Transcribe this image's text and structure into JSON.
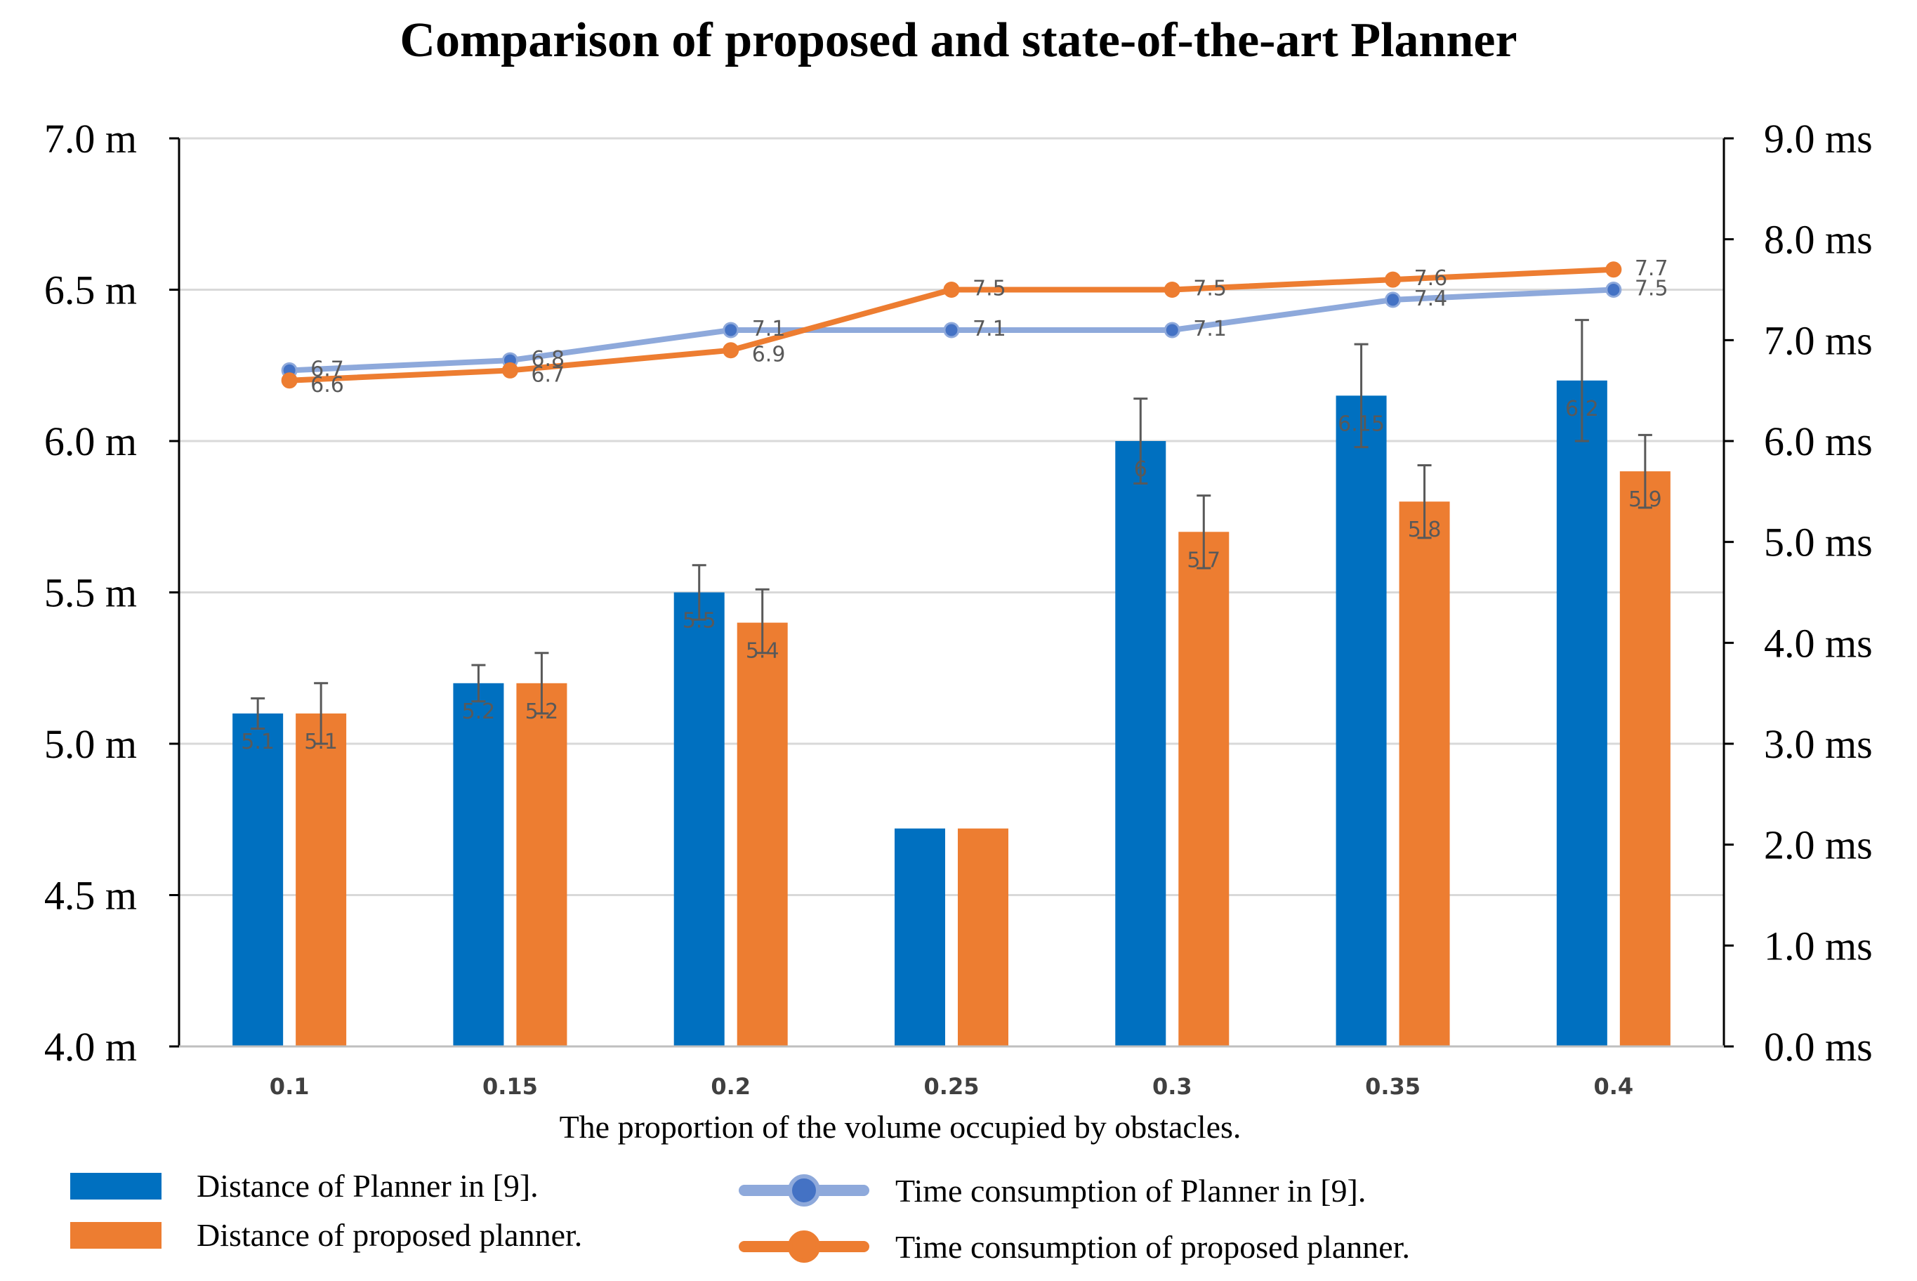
{
  "chart_data": {
    "type": "bar",
    "title": "Comparison of proposed and state-of-the-art Planner",
    "xlabel": "The proportion of the volume occupied by obstacles.",
    "categories": [
      "0.1",
      "0.15",
      "0.2",
      "0.25",
      "0.3",
      "0.35",
      "0.4"
    ],
    "left_axis": {
      "ylim": [
        4.0,
        7.0
      ],
      "ticks": [
        "4.0 m",
        "4.5 m",
        "5.0 m",
        "5.5 m",
        "6.0 m",
        "6.5 m",
        "7.0 m"
      ],
      "tick_values": [
        4.0,
        4.5,
        5.0,
        5.5,
        6.0,
        6.5,
        7.0
      ]
    },
    "right_axis": {
      "ylim": [
        0.0,
        9.0
      ],
      "ticks": [
        "0.0 ms",
        "1.0 ms",
        "2.0 ms",
        "3.0 ms",
        "4.0 ms",
        "5.0 ms",
        "6.0 ms",
        "7.0 ms",
        "8.0 ms",
        "9.0 ms"
      ],
      "tick_values": [
        0,
        1,
        2,
        3,
        4,
        5,
        6,
        7,
        8,
        9
      ]
    },
    "bar_series": [
      {
        "name": "Distance of Planner in [9].",
        "color": "#0070C0",
        "values": [
          5.1,
          5.2,
          5.5,
          4.72,
          6.0,
          6.15,
          6.2
        ],
        "error_low": [
          5.05,
          5.14,
          5.41,
          null,
          5.86,
          5.98,
          6.0
        ],
        "error_high": [
          5.15,
          5.26,
          5.59,
          null,
          6.14,
          6.32,
          6.4
        ],
        "data_labels": [
          "5.1",
          "5.2",
          "5.5",
          "",
          "6",
          "6.15",
          "6.2"
        ]
      },
      {
        "name": "Distance of proposed planner.",
        "color": "#ED7D31",
        "values": [
          5.1,
          5.2,
          5.4,
          4.72,
          5.7,
          5.8,
          5.9
        ],
        "error_low": [
          5.0,
          5.1,
          5.3,
          null,
          5.58,
          5.68,
          5.78
        ],
        "error_high": [
          5.2,
          5.3,
          5.51,
          null,
          5.82,
          5.92,
          6.02
        ],
        "data_labels": [
          "5.1",
          "5.2",
          "5.4",
          "",
          "5.7",
          "5.8",
          "5.9"
        ]
      }
    ],
    "line_series": [
      {
        "name": "Time consumption of Planner in [9].",
        "color": "#8EA9DB",
        "marker_color": "#4472C4",
        "values": [
          6.7,
          6.8,
          7.1,
          7.1,
          7.1,
          7.4,
          7.5
        ],
        "data_labels": [
          "6.7",
          "6.8",
          "7.1",
          "7.1",
          "7.1",
          "7.4",
          "7.5"
        ]
      },
      {
        "name": "Time consumption of proposed planner.",
        "color": "#ED7D31",
        "marker_color": "#ED7D31",
        "values": [
          6.6,
          6.7,
          6.9,
          7.5,
          7.5,
          7.6,
          7.7
        ],
        "data_labels": [
          "6.6",
          "6.7",
          "6.9",
          "7.5",
          "7.5",
          "7.6",
          "7.7"
        ]
      }
    ],
    "grid": true,
    "legend_position": "bottom"
  }
}
